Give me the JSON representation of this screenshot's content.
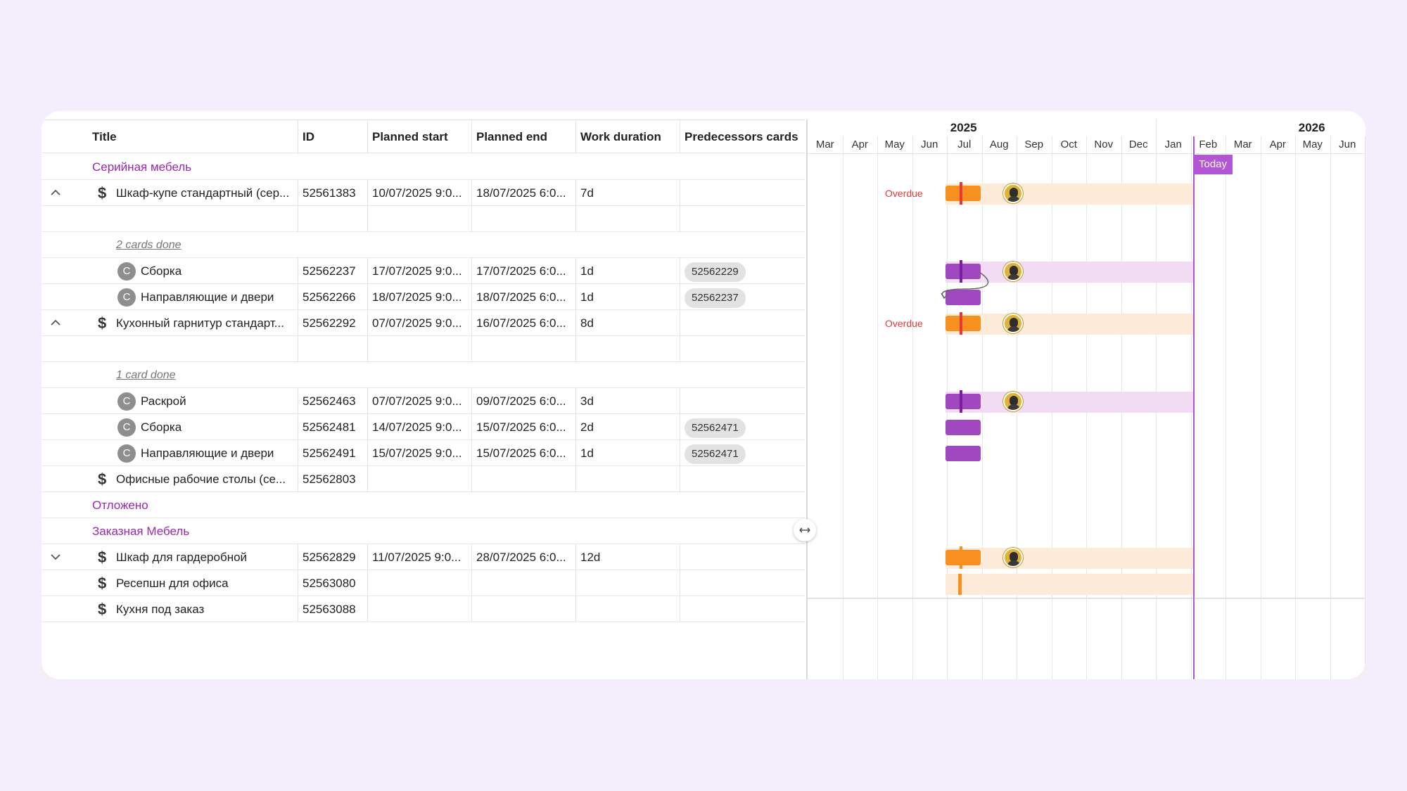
{
  "columns": {
    "title": "Title",
    "id": "ID",
    "planned_start": "Planned start",
    "planned_end": "Planned end",
    "work_duration": "Work duration",
    "predecessors": "Predecessors cards"
  },
  "rows": [
    {
      "kind": "group",
      "title": "Серийная мебель"
    },
    {
      "kind": "item",
      "title": "Шкаф-купе стандартный (сер...",
      "id": "52561383",
      "start": "10/07/2025 9:0...",
      "end": "18/07/2025 6:0...",
      "duration": "7d",
      "pred": "",
      "chevron": "up"
    },
    {
      "kind": "blank"
    },
    {
      "kind": "summary",
      "title": "2 cards done"
    },
    {
      "kind": "child",
      "title": "Сборка",
      "id": "52562237",
      "start": "17/07/2025 9:0...",
      "end": "17/07/2025 6:0...",
      "duration": "1d",
      "pred": "52562229"
    },
    {
      "kind": "child",
      "title": "Направляющие и двери",
      "id": "52562266",
      "start": "18/07/2025 9:0...",
      "end": "18/07/2025 6:0...",
      "duration": "1d",
      "pred": "52562237"
    },
    {
      "kind": "item",
      "title": "Кухонный гарнитур стандарт...",
      "id": "52562292",
      "start": "07/07/2025 9:0...",
      "end": "16/07/2025 6:0...",
      "duration": "8d",
      "pred": "",
      "chevron": "up"
    },
    {
      "kind": "blank"
    },
    {
      "kind": "summary",
      "title": "1 card done"
    },
    {
      "kind": "child",
      "title": "Раскрой",
      "id": "52562463",
      "start": "07/07/2025 9:0...",
      "end": "09/07/2025 6:0...",
      "duration": "3d",
      "pred": ""
    },
    {
      "kind": "child",
      "title": "Сборка",
      "id": "52562481",
      "start": "14/07/2025 9:0...",
      "end": "15/07/2025 6:0...",
      "duration": "2d",
      "pred": "52562471"
    },
    {
      "kind": "child",
      "title": "Направляющие и двери",
      "id": "52562491",
      "start": "15/07/2025 9:0...",
      "end": "15/07/2025 6:0...",
      "duration": "1d",
      "pred": "52562471"
    },
    {
      "kind": "item",
      "title": "Офисные рабочие столы (се...",
      "id": "52562803",
      "start": "",
      "end": "",
      "duration": "",
      "pred": "",
      "chevron": ""
    },
    {
      "kind": "group",
      "title": "Отложено"
    },
    {
      "kind": "group",
      "title": "Заказная Мебель"
    },
    {
      "kind": "item",
      "title": "Шкаф для гардеробной",
      "id": "52562829",
      "start": "11/07/2025 9:0...",
      "end": "28/07/2025 6:0...",
      "duration": "12d",
      "pred": "",
      "chevron": "down"
    },
    {
      "kind": "item",
      "title": "Ресепшн для офиса",
      "id": "52563080",
      "start": "",
      "end": "",
      "duration": "",
      "pred": "",
      "chevron": ""
    },
    {
      "kind": "item",
      "title": "Кухня под заказ",
      "id": "52563088",
      "start": "",
      "end": "",
      "duration": "",
      "pred": "",
      "chevron": ""
    }
  ],
  "timeline": {
    "years": [
      "2025",
      "2026"
    ],
    "months": [
      "Mar",
      "Apr",
      "May",
      "Jun",
      "Jul",
      "Aug",
      "Sep",
      "Oct",
      "Nov",
      "Dec",
      "Jan",
      "Feb",
      "Mar",
      "Apr",
      "May",
      "Jun"
    ],
    "today_label": "Today",
    "overdue_label": "Overdue"
  },
  "colors": {
    "accent": "#9c27b0",
    "today": "#b455d6",
    "overdue": "#e53935",
    "bar_orange": "#f7901e",
    "bar_purple": "#a048c0",
    "track_orange": "#fdebd9",
    "track_purple": "#f1dcf3"
  }
}
